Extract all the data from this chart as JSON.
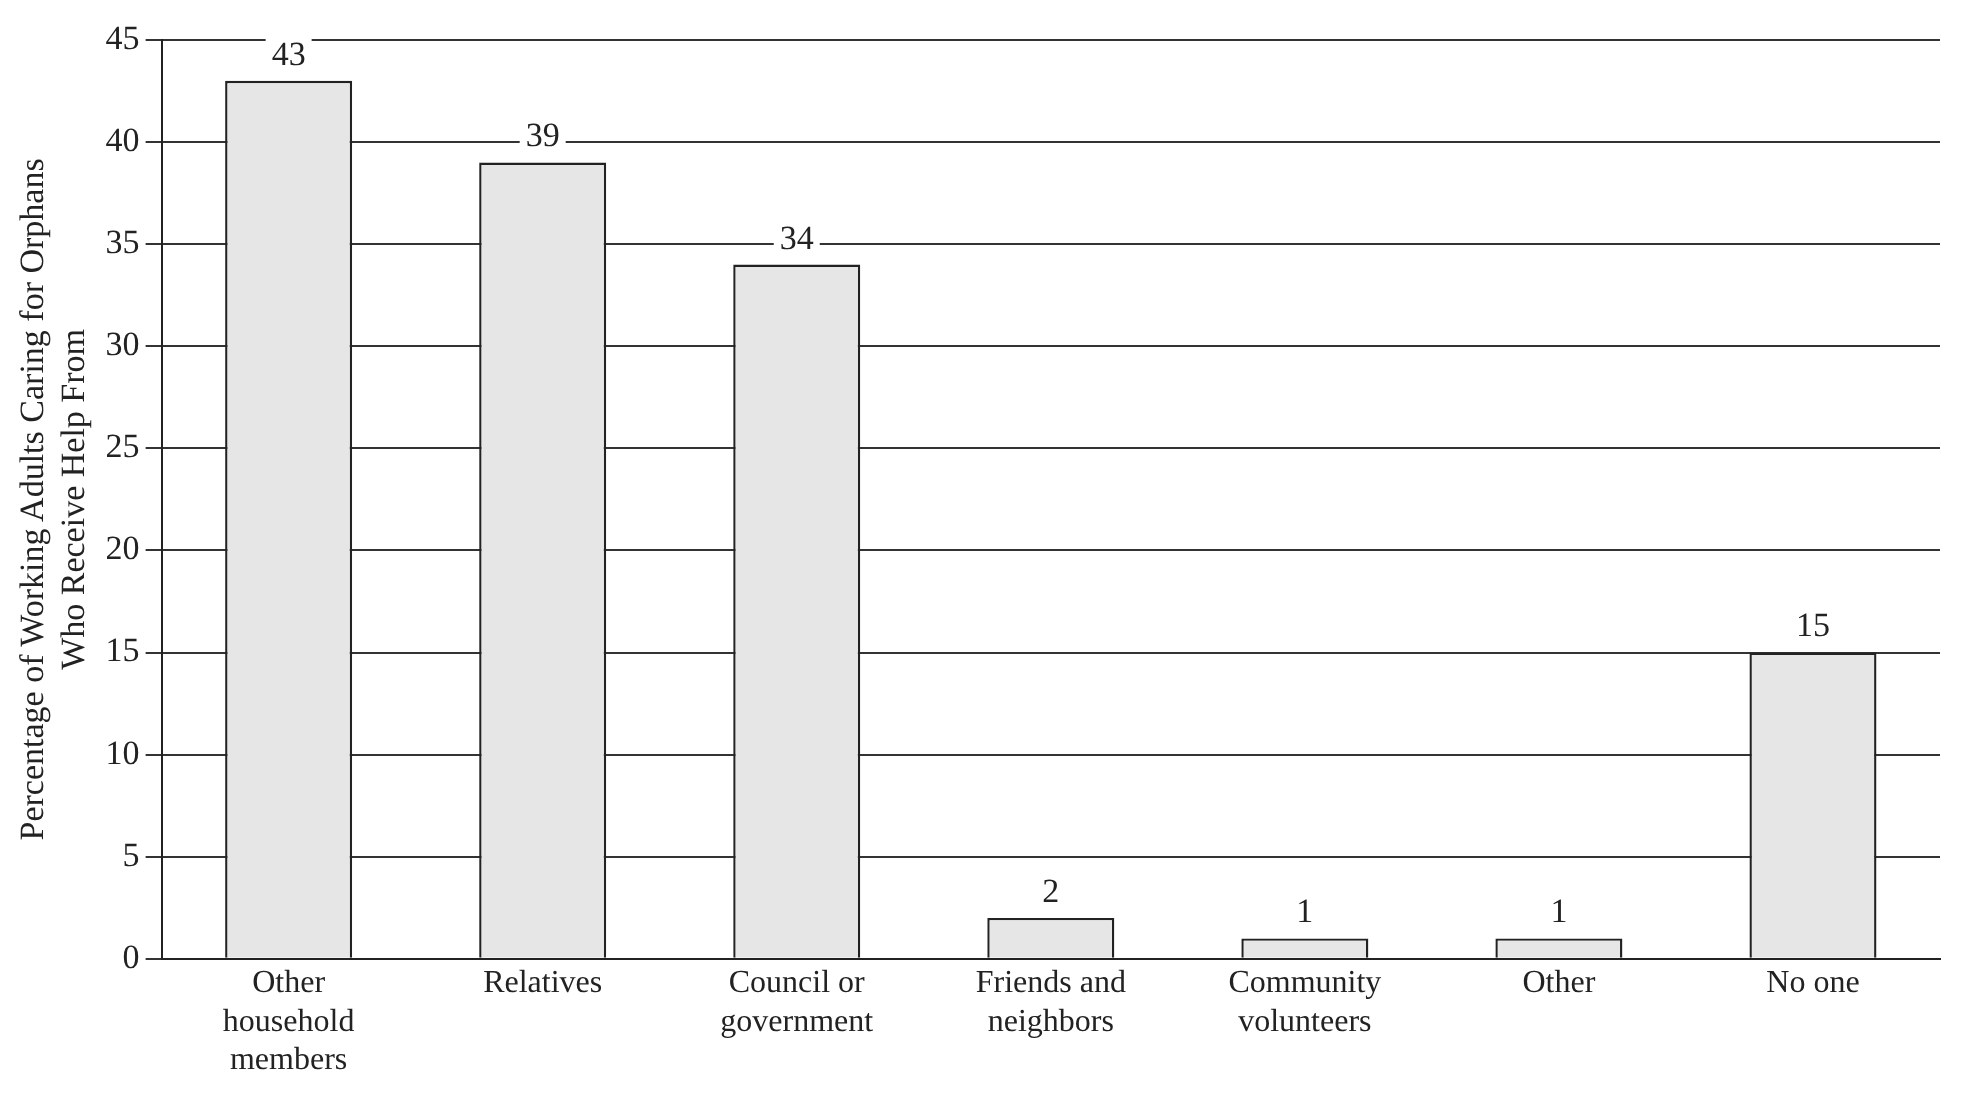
{
  "chart_data": {
    "type": "bar",
    "ylabel": "Percentage of Working Adults Caring for Orphans Who Receive Help From",
    "categories": [
      "Other household members",
      "Relatives",
      "Council or government",
      "Friends and neighbors",
      "Community volunteers",
      "Other",
      "No one"
    ],
    "values": [
      43,
      39,
      34,
      2,
      1,
      1,
      15
    ],
    "color": "#e6e6e6",
    "ylim": [
      0,
      45
    ],
    "yticks": [
      0,
      5,
      10,
      15,
      20,
      25,
      30,
      35,
      40,
      45
    ],
    "grid": "y",
    "data_labels": true
  }
}
